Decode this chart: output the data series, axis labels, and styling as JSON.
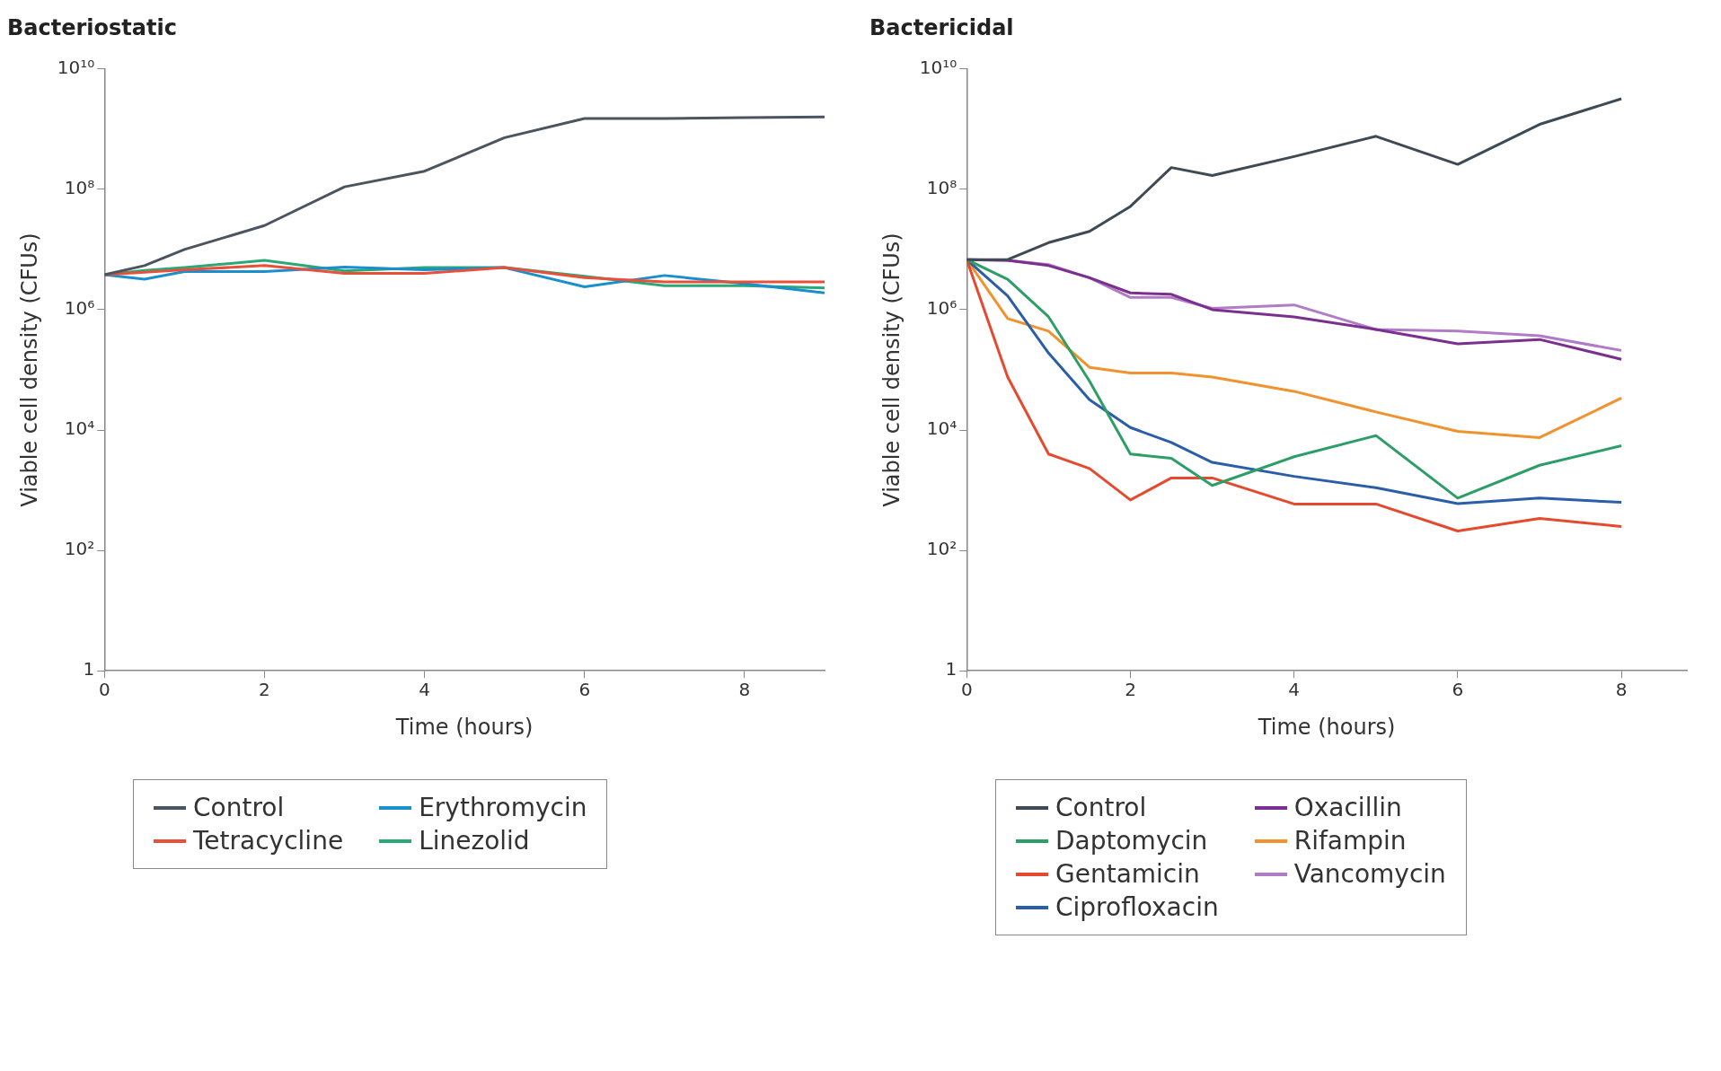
{
  "chart_data": [
    {
      "type": "line",
      "title": "Bacteriostatic",
      "xlabel": "Time (hours)",
      "ylabel": "Viable cell density (CFUs)",
      "xlim": [
        0,
        9
      ],
      "xticks": [
        0,
        2,
        4,
        6,
        8
      ],
      "ylim": [
        1,
        10000000000.0
      ],
      "yticks": [
        {
          "value": 1,
          "label": "1"
        },
        {
          "value": 100,
          "label": "10²"
        },
        {
          "value": 10000,
          "label": "10⁴"
        },
        {
          "value": 1000000,
          "label": "10⁶"
        },
        {
          "value": 100000000,
          "label": "10⁸"
        },
        {
          "value": 10000000000,
          "label": "10¹⁰"
        }
      ],
      "log": "y",
      "grid": false,
      "legend": "bottom",
      "x": [
        0,
        0.5,
        1,
        2,
        3,
        4,
        5,
        6,
        7,
        8,
        9
      ],
      "series": [
        {
          "name": "Control",
          "color": "#4a5560",
          "values": [
            3800000.0,
            5400000.0,
            10000000.0,
            25000000.0,
            110000000.0,
            200000000.0,
            720000000.0,
            1500000000.0,
            1500000000.0,
            1550000000.0,
            1600000000.0
          ]
        },
        {
          "name": "Tetracycline",
          "color": "#e8503a",
          "values": [
            3800000.0,
            4200000.0,
            4600000.0,
            5400000.0,
            4000000.0,
            4000000.0,
            5000000.0,
            3400000.0,
            2900000.0,
            2900000.0,
            2900000.0
          ]
        },
        {
          "name": "Erythromycin",
          "color": "#1a8fcf",
          "values": [
            3800000.0,
            3200000.0,
            4300000.0,
            4300000.0,
            5100000.0,
            4600000.0,
            5000000.0,
            2400000.0,
            3700000.0,
            2700000.0,
            1900000.0
          ]
        },
        {
          "name": "Linezolid",
          "color": "#2aa876",
          "values": [
            3800000.0,
            4500000.0,
            5000000.0,
            6600000.0,
            4400000.0,
            5000000.0,
            5000000.0,
            3600000.0,
            2500000.0,
            2500000.0,
            2300000.0
          ]
        }
      ]
    },
    {
      "type": "line",
      "title": "Bactericidal",
      "xlabel": "Time (hours)",
      "ylabel": "Viable cell density (CFUs)",
      "xlim": [
        0,
        8.8
      ],
      "xticks": [
        0,
        2,
        4,
        6,
        8
      ],
      "ylim": [
        1,
        10000000000.0
      ],
      "yticks": [
        {
          "value": 1,
          "label": "1"
        },
        {
          "value": 100,
          "label": "10²"
        },
        {
          "value": 10000,
          "label": "10⁴"
        },
        {
          "value": 1000000,
          "label": "10⁶"
        },
        {
          "value": 100000000,
          "label": "10⁸"
        },
        {
          "value": 10000000000,
          "label": "10¹⁰"
        }
      ],
      "log": "y",
      "grid": false,
      "legend": "bottom",
      "x": [
        0,
        0.5,
        1,
        1.5,
        2,
        2.5,
        3,
        4,
        5,
        6,
        7,
        8
      ],
      "series": [
        {
          "name": "Control",
          "color": "#3e4a55",
          "values": [
            6800000.0,
            6800000.0,
            13000000.0,
            20000000.0,
            52000000.0,
            230000000.0,
            170000000.0,
            350000000.0,
            760000000.0,
            260000000.0,
            1200000000.0,
            3200000000.0
          ]
        },
        {
          "name": "Daptomycin",
          "color": "#2e9e68",
          "values": [
            6800000.0,
            3200000.0,
            760000.0,
            65000.0,
            4000.0,
            3400.0,
            1200.0,
            3600.0,
            8100.0,
            740,
            2600.0,
            5500.0
          ]
        },
        {
          "name": "Gentamicin",
          "color": "#e64a2e",
          "values": [
            6800000.0,
            76000.0,
            4000.0,
            2300.0,
            690,
            1600.0,
            1600.0,
            590,
            590,
            210,
            340,
            250
          ]
        },
        {
          "name": "Ciprofloxacin",
          "color": "#2b5ea8",
          "values": [
            6800000.0,
            1700000.0,
            190000.0,
            32000.0,
            11000.0,
            6200.0,
            2900.0,
            1700.0,
            1100.0,
            600,
            740,
            630
          ]
        },
        {
          "name": "Oxacillin",
          "color": "#7b2f8e",
          "values": [
            6800000.0,
            6600000.0,
            5400000.0,
            3400000.0,
            1900000.0,
            1800000.0,
            1000000.0,
            760000.0,
            470000.0,
            270000.0,
            320000.0,
            150000.0
          ]
        },
        {
          "name": "Rifampin",
          "color": "#f0922e",
          "values": [
            6800000.0,
            710000.0,
            440000.0,
            110000.0,
            89000.0,
            89000.0,
            76000.0,
            44000.0,
            20000.0,
            9500.0,
            7500.0,
            34000.0
          ]
        },
        {
          "name": "Vancomycin",
          "color": "#b07cc6",
          "values": [
            6800000.0,
            6600000.0,
            5600000.0,
            3400000.0,
            1600000.0,
            1600000.0,
            1050000.0,
            1200000.0,
            470000.0,
            440000.0,
            370000.0,
            210000.0
          ]
        }
      ]
    }
  ]
}
